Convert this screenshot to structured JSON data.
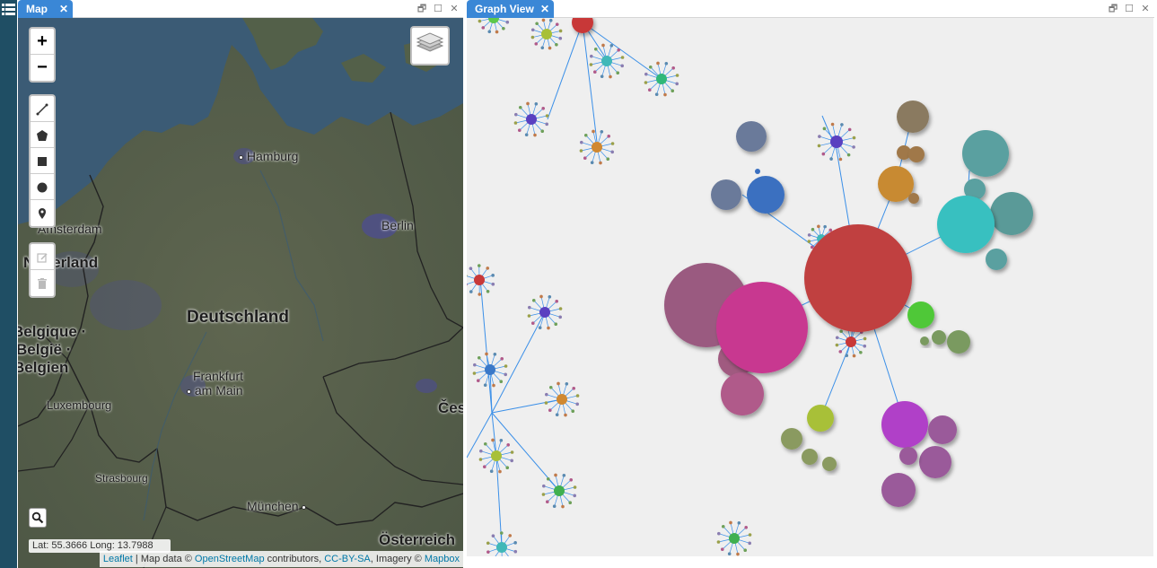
{
  "app": {
    "menu_icon": "hamburger-icon",
    "rail_color": "#1f4e64"
  },
  "map_panel": {
    "tab_label": "Map",
    "tab_close": "✕",
    "controls": {
      "zoom_in": "+",
      "zoom_out": "−",
      "draw_tools": [
        "draw-polyline-icon",
        "draw-polygon-icon",
        "draw-rectangle-icon",
        "draw-circle-icon",
        "draw-marker-icon"
      ],
      "edit_tools": [
        "edit-layers-icon",
        "delete-layers-icon"
      ],
      "layers": "layers-icon",
      "search": "search-icon"
    },
    "labels": {
      "hamburg": "Hamburg",
      "berlin": "Berlin",
      "amsterdam": "Amsterdam",
      "nederland": "Nederland",
      "deutschland": "Deutschland",
      "frankfurt_1": "Frankfurt",
      "frankfurt_2": "am Main",
      "belgique_1": "Belgique ·",
      "belgique_2": "België ·",
      "belgique_3": "Belgien",
      "luxembourg": "Luxembourg",
      "cesko": "Česko",
      "strasbourg": "Strasbourg",
      "munchen": "München",
      "osterreich": "Österreich"
    },
    "coords_text": "Lat: 55.3666 Long: 13.7988",
    "attribution": {
      "leaflet": "Leaflet",
      "sep1": " | Map data © ",
      "osm": "OpenStreetMap",
      "sep2": " contributors, ",
      "license": "CC-BY-SA",
      "sep3": ", Imagery © ",
      "mapbox": "Mapbox"
    },
    "colors": {
      "land": "#56604b",
      "sea": "#3b5b75",
      "border": "#222222",
      "urban": "#4d4f8a"
    }
  },
  "graph_panel": {
    "tab_label": "Graph View",
    "tab_close": "✕",
    "background": "#efefef",
    "edge_color": "#3a8fe8"
  },
  "window_controls": {
    "restore": "🗗",
    "maximize": "☐",
    "close": "✕"
  }
}
